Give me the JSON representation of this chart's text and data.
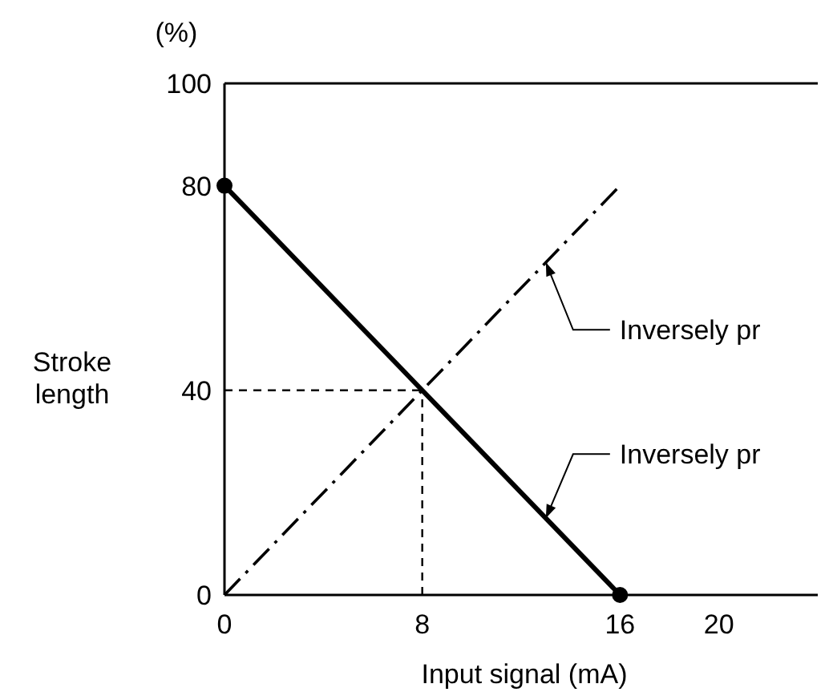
{
  "chart_data": {
    "type": "line",
    "xlabel": "Input signal (mA)",
    "ylabel": "Stroke length",
    "x": [
      0,
      16
    ],
    "series": [
      {
        "color": "#000000",
        "values": [
          80,
          0
        ],
        "marker": "circle",
        "line_style": "solid"
      },
      {
        "color": "#000000",
        "values": [
          0,
          80
        ],
        "marker": "none",
        "line_style": "dashdot"
      }
    ],
    "xlim": [
      0,
      24
    ],
    "xticks": [
      0,
      8,
      16,
      20
    ],
    "ylim": [
      0,
      100
    ],
    "yticks": [
      0,
      40,
      80,
      100
    ],
    "ref_lines": [
      {
        "axis": "x",
        "value": 8,
        "line_style": "dashed"
      },
      {
        "axis": "y",
        "value": 40,
        "line_style": "dashed"
      }
    ],
    "annotations": [
      "(%)",
      {
        "text": "Inversely pr",
        "x": 13,
        "y": 65
      },
      {
        "text": "Inversely pr",
        "x": 13,
        "y": 15
      }
    ],
    "grid": false
  }
}
